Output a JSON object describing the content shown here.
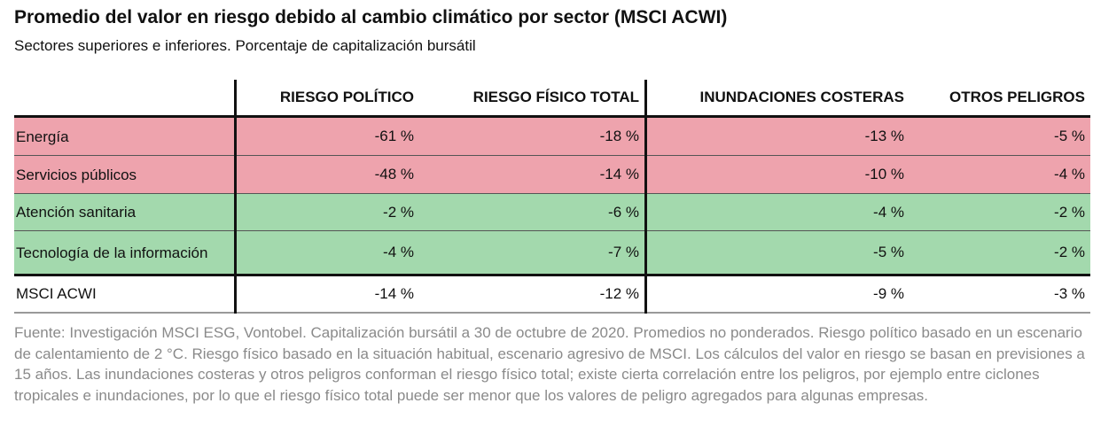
{
  "chart_data": {
    "type": "table",
    "title": "Promedio del valor en riesgo debido al cambio climático por sector (MSCI ACWI)",
    "subtitle": "Sectores superiores e inferiores. Porcentaje de capitalización bursátil",
    "columns": [
      "",
      "RIESGO POLÍTICO",
      "RIESGO FÍSICO TOTAL",
      "INUNDACIONES COSTERAS",
      "OTROS PELIGROS"
    ],
    "rows": [
      {
        "label": "Energía",
        "values": [
          "-61 %",
          "-18 %",
          "-13 %",
          "-5 %"
        ],
        "color": "#eea3ad"
      },
      {
        "label": "Servicios públicos",
        "values": [
          "-48 %",
          "-14 %",
          "-10 %",
          "-4 %"
        ],
        "color": "#eea3ad"
      },
      {
        "label": "Atención sanitaria",
        "values": [
          "-2 %",
          "-6 %",
          "-4 %",
          "-2 %"
        ],
        "color": "#a3d9ad"
      },
      {
        "label": "Tecnología de la información",
        "values": [
          "-4 %",
          "-7 %",
          "-5 %",
          "-2 %"
        ],
        "color": "#a3d9ad"
      },
      {
        "label": "MSCI ACWI",
        "values": [
          "-14 %",
          "-12 %",
          "-9 %",
          "-3 %"
        ],
        "color": "#ffffff"
      }
    ],
    "footer": "Fuente: Investigación MSCI ESG, Vontobel. Capitalización bursátil a 30 de octubre de 2020. Promedios no ponderados. Riesgo político basado en un escenario de calentamiento de 2 °C. Riesgo físico basado en la situación habitual, escenario agresivo de MSCI. Los cálculos del valor en riesgo se basan en previsiones a 15 años. Las inundaciones costeras y otros peligros conforman el riesgo físico total; existe cierta correlación entre los peligros, por ejemplo entre ciclones tropicales e inundaciones, por lo que el riesgo físico total puede ser menor que los valores de peligro agregados para algunas empresas."
  }
}
